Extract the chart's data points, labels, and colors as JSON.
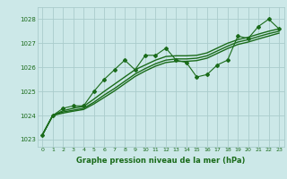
{
  "title": "Graphe pression niveau de la mer (hPa)",
  "bg_color": "#cce8e8",
  "grid_color": "#aacccc",
  "line_color": "#1a6b1a",
  "xlim": [
    -0.5,
    23.5
  ],
  "ylim": [
    1022.7,
    1028.5
  ],
  "yticks": [
    1023,
    1024,
    1025,
    1026,
    1027,
    1028
  ],
  "xticks": [
    0,
    1,
    2,
    3,
    4,
    5,
    6,
    7,
    8,
    9,
    10,
    11,
    12,
    13,
    14,
    15,
    16,
    17,
    18,
    19,
    20,
    21,
    22,
    23
  ],
  "series": [
    {
      "x": [
        0,
        1,
        2,
        3,
        4,
        5,
        6,
        7,
        8,
        9,
        10,
        11,
        12,
        13,
        14,
        15,
        16,
        17,
        18,
        19,
        20,
        21,
        22,
        23
      ],
      "y": [
        1023.2,
        1024.0,
        1024.3,
        1024.4,
        1024.4,
        1025.0,
        1025.5,
        1025.9,
        1026.3,
        1025.9,
        1026.5,
        1026.5,
        1026.8,
        1026.3,
        1026.2,
        1025.6,
        1025.7,
        1026.1,
        1026.3,
        1027.3,
        1027.2,
        1027.7,
        1028.0,
        1027.6
      ],
      "marker": "D",
      "markersize": 2.0,
      "linewidth": 0.8
    },
    {
      "x": [
        0,
        1,
        2,
        3,
        4,
        5,
        6,
        7,
        8,
        9,
        10,
        11,
        12,
        13,
        14,
        15,
        16,
        17,
        18,
        19,
        20,
        21,
        22,
        23
      ],
      "y": [
        1023.2,
        1024.0,
        1024.2,
        1024.3,
        1024.38,
        1024.68,
        1025.0,
        1025.3,
        1025.6,
        1025.9,
        1026.1,
        1026.3,
        1026.45,
        1026.48,
        1026.48,
        1026.5,
        1026.6,
        1026.8,
        1027.0,
        1027.15,
        1027.25,
        1027.38,
        1027.5,
        1027.6
      ],
      "marker": null,
      "linewidth": 1.0
    },
    {
      "x": [
        0,
        1,
        2,
        3,
        4,
        5,
        6,
        7,
        8,
        9,
        10,
        11,
        12,
        13,
        14,
        15,
        16,
        17,
        18,
        19,
        20,
        21,
        22,
        23
      ],
      "y": [
        1023.2,
        1024.0,
        1024.15,
        1024.22,
        1024.3,
        1024.55,
        1024.85,
        1025.12,
        1025.42,
        1025.72,
        1025.95,
        1026.15,
        1026.3,
        1026.35,
        1026.35,
        1026.38,
        1026.48,
        1026.68,
        1026.88,
        1027.05,
        1027.15,
        1027.28,
        1027.4,
        1027.5
      ],
      "marker": null,
      "linewidth": 1.0
    },
    {
      "x": [
        0,
        1,
        2,
        3,
        4,
        5,
        6,
        7,
        8,
        9,
        10,
        11,
        12,
        13,
        14,
        15,
        16,
        17,
        18,
        19,
        20,
        21,
        22,
        23
      ],
      "y": [
        1023.2,
        1024.0,
        1024.1,
        1024.18,
        1024.25,
        1024.48,
        1024.75,
        1025.02,
        1025.32,
        1025.62,
        1025.85,
        1026.05,
        1026.2,
        1026.25,
        1026.25,
        1026.28,
        1026.38,
        1026.58,
        1026.78,
        1026.95,
        1027.05,
        1027.18,
        1027.3,
        1027.42
      ],
      "marker": null,
      "linewidth": 1.0
    }
  ]
}
